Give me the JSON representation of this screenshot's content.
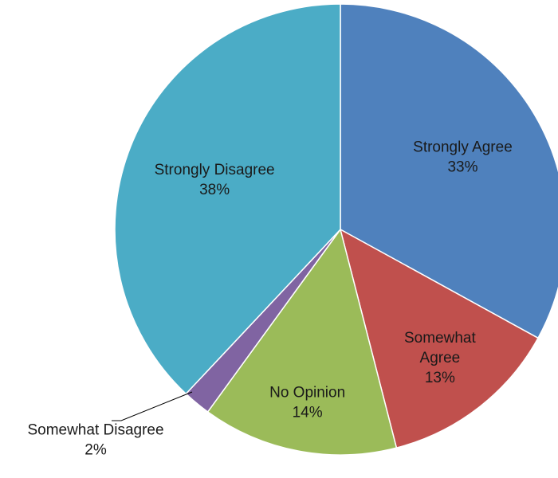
{
  "chart_data": {
    "type": "pie",
    "title": "",
    "slices": [
      {
        "label": "Strongly Agree",
        "value": 33,
        "display": "33%",
        "color": "#4F81BD"
      },
      {
        "label": "Somewhat Agree",
        "value": 13,
        "display": "13%",
        "color": "#C0504D"
      },
      {
        "label": "No Opinion",
        "value": 14,
        "display": "14%",
        "color": "#9BBB59"
      },
      {
        "label": "Somewhat Disagree",
        "value": 2,
        "display": "2%",
        "color": "#8064A2"
      },
      {
        "label": "Strongly Disagree",
        "value": 38,
        "display": "38%",
        "color": "#4BACC6"
      }
    ],
    "start": "12 o'clock",
    "direction": "clockwise",
    "legend": "none"
  }
}
